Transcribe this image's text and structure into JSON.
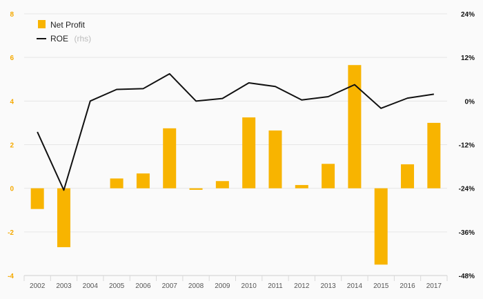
{
  "chart_data": {
    "type": "bar+line",
    "categories": [
      "2002",
      "2003",
      "2004",
      "2005",
      "2006",
      "2007",
      "2008",
      "2009",
      "2010",
      "2011",
      "2012",
      "2013",
      "2014",
      "2015",
      "2016",
      "2017"
    ],
    "series": [
      {
        "name": "Net Profit",
        "type": "bar",
        "axis": "left",
        "color": "#f8b400",
        "values": [
          -0.95,
          -2.7,
          0,
          0.45,
          0.68,
          2.75,
          -0.07,
          0.33,
          3.25,
          2.65,
          0.15,
          1.12,
          5.65,
          -3.5,
          1.1,
          3.0
        ]
      },
      {
        "name": "ROE",
        "name_suffix": "(rhs)",
        "type": "line",
        "axis": "right",
        "color": "#111111",
        "values": [
          -8.5,
          -24.5,
          0,
          3.2,
          3.4,
          7.5,
          0,
          0.7,
          5,
          4,
          0.3,
          1.2,
          4.5,
          -2,
          0.8,
          1.9
        ]
      }
    ],
    "left_axis": {
      "ylim": [
        -4,
        8
      ],
      "ticks": [
        "-4",
        "-2",
        "0",
        "2",
        "4",
        "6",
        "8"
      ]
    },
    "right_axis": {
      "ylim": [
        -48,
        24
      ],
      "ticks": [
        "-48%",
        "-36%",
        "-24%",
        "-12%",
        "0%",
        "12%",
        "24%"
      ]
    },
    "grid": true,
    "legend": "top-left"
  }
}
